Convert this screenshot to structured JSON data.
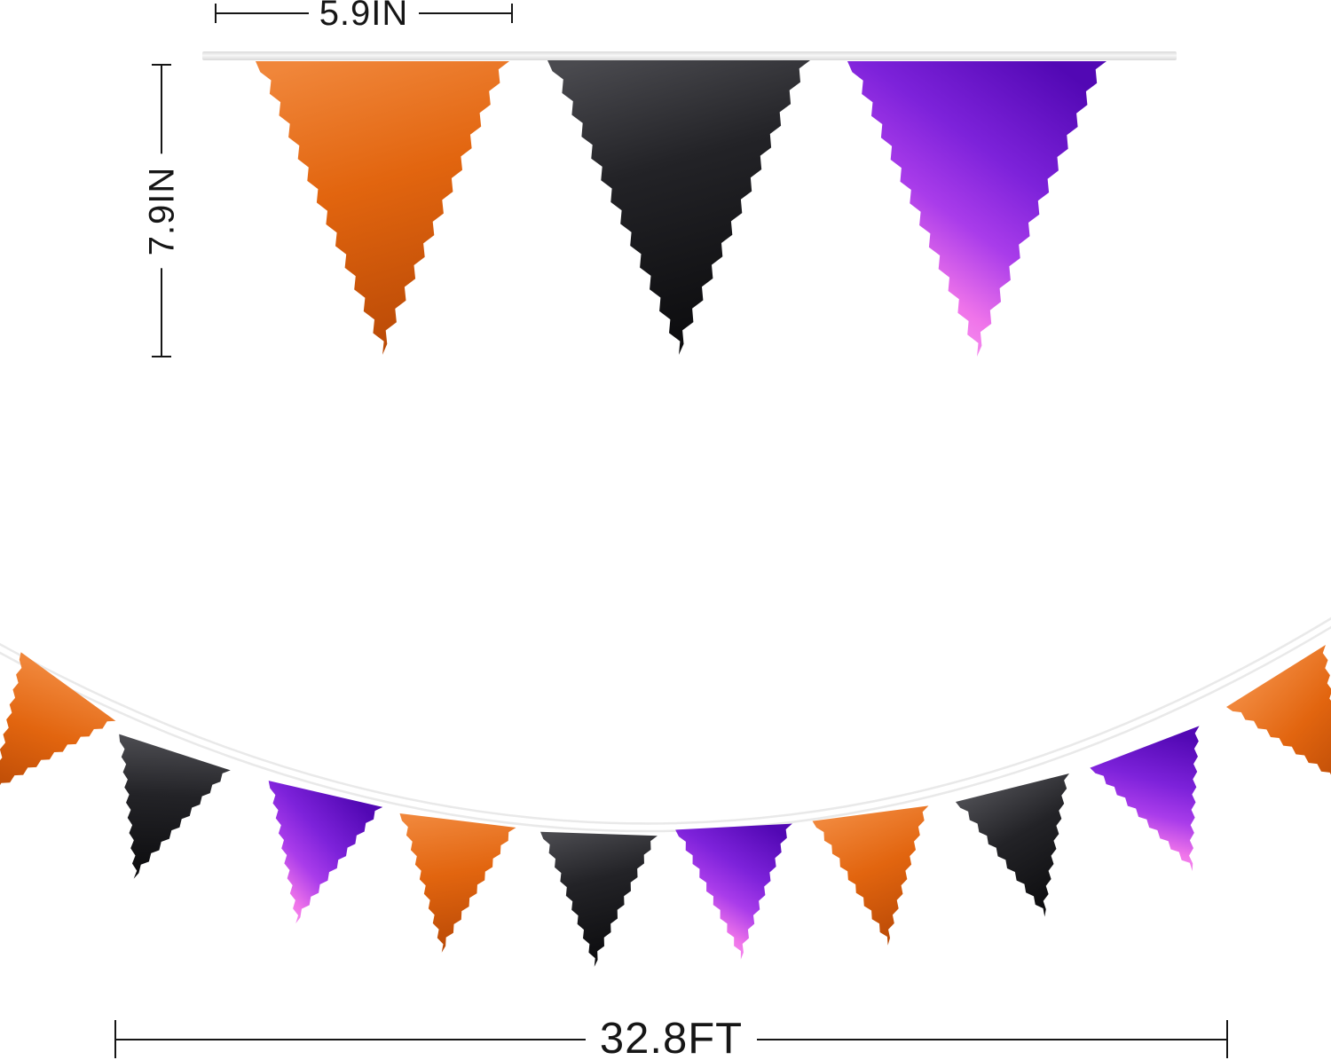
{
  "annotations": {
    "flag_width_label": "5.9IN",
    "flag_height_label": "7.9IN",
    "banner_length_label": "32.8FT"
  },
  "top_row_flags": [
    "orange",
    "black",
    "purple"
  ],
  "bottom_banner_flags": [
    "orange",
    "black",
    "purple",
    "orange",
    "black",
    "purple",
    "orange",
    "black",
    "purple",
    "orange"
  ],
  "colors": {
    "orange_light": "#f0863a",
    "orange_mid": "#e2650f",
    "orange_dark": "#ba4a06",
    "black_light": "#4a4a4f",
    "black_mid": "#232327",
    "black_dark": "#0c0c0e",
    "purple_deep": "#5208b4",
    "purple_mid": "#7d22da",
    "purple_bright": "#a93cea",
    "purple_pink": "#ef74ea",
    "purple_pink_light": "#f9a2f1",
    "ribbon_edge": "#d9d9d9",
    "ribbon_center": "#f7f7f7",
    "string_outer": "#e9e9e9",
    "string_core": "#ffffff",
    "dimension_line": "#161616",
    "background": "#ffffff"
  }
}
